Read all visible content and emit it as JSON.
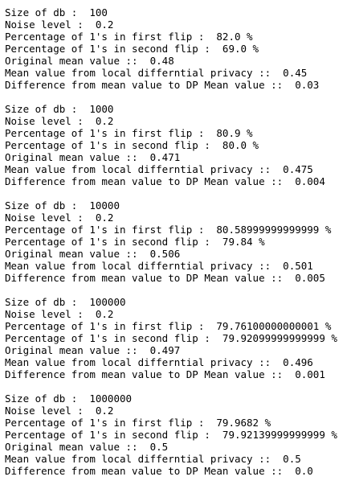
{
  "output": {
    "blocks": [
      {
        "lines": [
          "Size of db :  100",
          "Noise level :  0.2",
          "Percentage of 1's in first flip :  82.0 %",
          "Percentage of 1's in second flip :  69.0 %",
          "Original mean value ::  0.48",
          "Mean value from local differntial privacy ::  0.45",
          "Difference from mean value to DP Mean value ::  0.03"
        ]
      },
      {
        "lines": [
          "Size of db :  1000",
          "Noise level :  0.2",
          "Percentage of 1's in first flip :  80.9 %",
          "Percentage of 1's in second flip :  80.0 %",
          "Original mean value ::  0.471",
          "Mean value from local differntial privacy ::  0.475",
          "Difference from mean value to DP Mean value ::  0.004"
        ]
      },
      {
        "lines": [
          "Size of db :  10000",
          "Noise level :  0.2",
          "Percentage of 1's in first flip :  80.58999999999999 %",
          "Percentage of 1's in second flip :  79.84 %",
          "Original mean value ::  0.506",
          "Mean value from local differntial privacy ::  0.501",
          "Difference from mean value to DP Mean value ::  0.005"
        ]
      },
      {
        "lines": [
          "Size of db :  100000",
          "Noise level :  0.2",
          "Percentage of 1's in first flip :  79.76100000000001 %",
          "Percentage of 1's in second flip :  79.92099999999999 %",
          "Original mean value ::  0.497",
          "Mean value from local differntial privacy ::  0.496",
          "Difference from mean value to DP Mean value ::  0.001"
        ]
      },
      {
        "lines": [
          "Size of db :  1000000",
          "Noise level :  0.2",
          "Percentage of 1's in first flip :  79.9682 %",
          "Percentage of 1's in second flip :  79.92139999999999 %",
          "Original mean value ::  0.5",
          "Mean value from local differntial privacy ::  0.5",
          "Difference from mean value to DP Mean value ::  0.0"
        ]
      }
    ]
  }
}
